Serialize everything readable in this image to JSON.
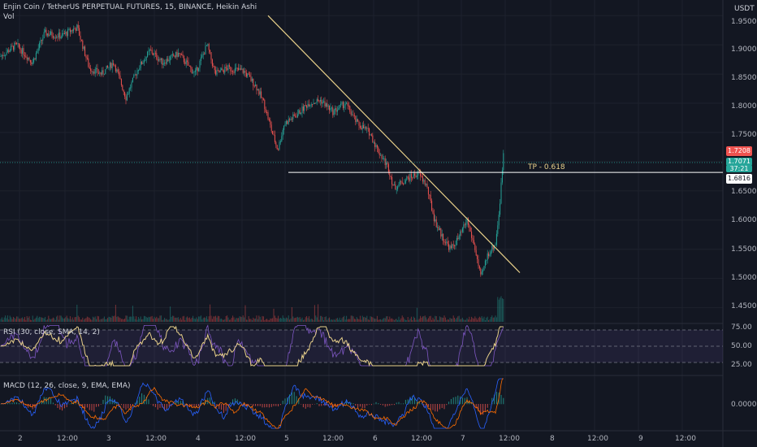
{
  "header": {
    "title": "Enjin Coin / TetherUS PERPETUAL FUTURES, 15, BINANCE, Heikin Ashi",
    "volume_label": "Vol",
    "currency": "USDT"
  },
  "price_axis": {
    "ticks": [
      "1.9500",
      "1.9000",
      "1.8500",
      "1.8000",
      "1.7500",
      "1.7000",
      "1.6500",
      "1.6000",
      "1.5500",
      "1.5000",
      "1.4500"
    ],
    "tags": {
      "last": "1.7208",
      "bid": "1.7071",
      "timer": "37:21",
      "tp_price": "1.6816"
    }
  },
  "annotations": {
    "tp_label": "TP - 0.618"
  },
  "rsi": {
    "title": "RSI (30, close, SMA, 14, 2)",
    "ticks": [
      "75.00",
      "50.00",
      "25.00"
    ]
  },
  "macd": {
    "title": "MACD (12, 26, close, 9, EMA, EMA)",
    "ticks": [
      "0.0000"
    ]
  },
  "time_axis": {
    "ticks": [
      "2",
      "12:00",
      "3",
      "12:00",
      "4",
      "12:00",
      "5",
      "12:00",
      "6",
      "12:00",
      "7",
      "12:00",
      "8",
      "12:00",
      "9",
      "12:00"
    ]
  },
  "colors": {
    "bull": "#26a69a",
    "bear": "#ef5350",
    "trendline": "#e8d08a",
    "tp_line": "#ffffff",
    "rsi_line": "#7e57c2",
    "rsi_ma": "#e8d08a",
    "macd_line": "#2962ff",
    "signal_line": "#ff6d00"
  },
  "chart_data": {
    "type": "candlestick",
    "symbol": "ENJUSDT.P",
    "interval": "15",
    "ylim": [
      1.43,
      1.96
    ],
    "series": [
      {
        "name": "price",
        "points": [
          {
            "x": 0,
            "y": 1.88
          },
          {
            "x": 20,
            "y": 1.9
          },
          {
            "x": 40,
            "y": 1.87
          },
          {
            "x": 55,
            "y": 1.92
          },
          {
            "x": 75,
            "y": 1.915
          },
          {
            "x": 95,
            "y": 1.93
          },
          {
            "x": 110,
            "y": 1.86
          },
          {
            "x": 125,
            "y": 1.85
          },
          {
            "x": 140,
            "y": 1.87
          },
          {
            "x": 155,
            "y": 1.81
          },
          {
            "x": 170,
            "y": 1.86
          },
          {
            "x": 185,
            "y": 1.89
          },
          {
            "x": 200,
            "y": 1.87
          },
          {
            "x": 220,
            "y": 1.885
          },
          {
            "x": 240,
            "y": 1.85
          },
          {
            "x": 255,
            "y": 1.9
          },
          {
            "x": 265,
            "y": 1.85
          },
          {
            "x": 280,
            "y": 1.86
          },
          {
            "x": 300,
            "y": 1.855
          },
          {
            "x": 315,
            "y": 1.83
          },
          {
            "x": 325,
            "y": 1.8
          },
          {
            "x": 335,
            "y": 1.75
          },
          {
            "x": 342,
            "y": 1.72
          },
          {
            "x": 350,
            "y": 1.765
          },
          {
            "x": 365,
            "y": 1.78
          },
          {
            "x": 380,
            "y": 1.8
          },
          {
            "x": 395,
            "y": 1.805
          },
          {
            "x": 410,
            "y": 1.785
          },
          {
            "x": 425,
            "y": 1.8
          },
          {
            "x": 440,
            "y": 1.765
          },
          {
            "x": 455,
            "y": 1.75
          },
          {
            "x": 465,
            "y": 1.72
          },
          {
            "x": 478,
            "y": 1.69
          },
          {
            "x": 485,
            "y": 1.655
          },
          {
            "x": 500,
            "y": 1.67
          },
          {
            "x": 515,
            "y": 1.68
          },
          {
            "x": 525,
            "y": 1.66
          },
          {
            "x": 535,
            "y": 1.6
          },
          {
            "x": 545,
            "y": 1.57
          },
          {
            "x": 555,
            "y": 1.55
          },
          {
            "x": 565,
            "y": 1.57
          },
          {
            "x": 575,
            "y": 1.6
          },
          {
            "x": 585,
            "y": 1.55
          },
          {
            "x": 592,
            "y": 1.5
          },
          {
            "x": 600,
            "y": 1.54
          },
          {
            "x": 610,
            "y": 1.56
          },
          {
            "x": 615,
            "y": 1.62
          },
          {
            "x": 620,
            "y": 1.72
          }
        ]
      }
    ],
    "trendline": {
      "from": {
        "x": 330,
        "y": 1.95
      },
      "to": {
        "x": 640,
        "y": 1.51
      }
    },
    "tp_level": 1.6816,
    "rsi_range": [
      20,
      80
    ]
  }
}
